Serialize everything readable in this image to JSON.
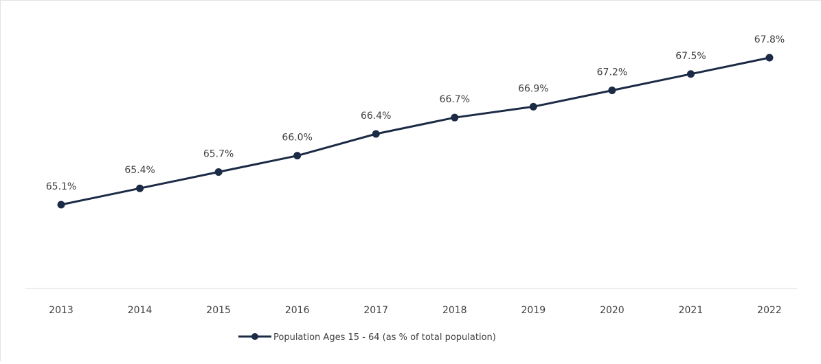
{
  "chart_data": {
    "type": "line",
    "categories": [
      "2013",
      "2014",
      "2015",
      "2016",
      "2017",
      "2018",
      "2019",
      "2020",
      "2021",
      "2022"
    ],
    "series": [
      {
        "name": "Population Ages 15 - 64 (as % of total population)",
        "values": [
          65.1,
          65.4,
          65.7,
          66.0,
          66.4,
          66.7,
          66.9,
          67.2,
          67.5,
          67.8
        ],
        "labels": [
          "65.1%",
          "65.4%",
          "65.7%",
          "66.0%",
          "66.4%",
          "66.7%",
          "66.9%",
          "67.2%",
          "67.5%",
          "67.8%"
        ]
      }
    ],
    "title": "",
    "xlabel": "",
    "ylabel": "",
    "y_axis_visible": false,
    "grid": false,
    "legend_position": "bottom",
    "colors": {
      "line": "#1b2a45",
      "marker": "#1b2a45",
      "text": "#404040",
      "axis": "#d9d9d9"
    }
  }
}
